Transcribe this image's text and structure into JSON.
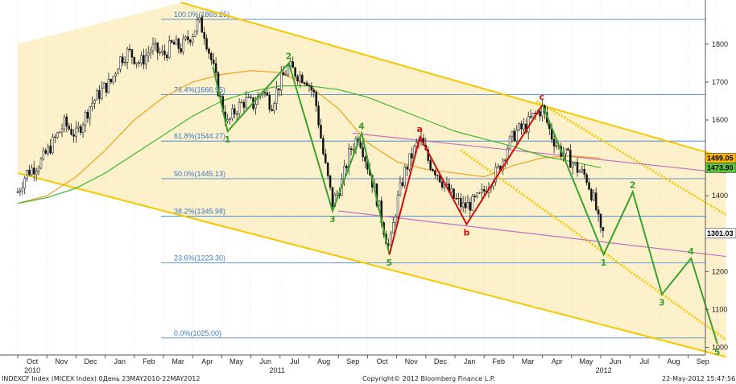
{
  "chart_data": {
    "type": "candlestick",
    "y_axis": {
      "ticks": [
        1000,
        1100,
        1200,
        1300,
        1400,
        1500,
        1600,
        1700,
        1800
      ],
      "ylim": [
        980,
        1910
      ],
      "position": "right"
    },
    "x_axis": {
      "months": [
        "Oct",
        "Nov",
        "Dec",
        "Jan",
        "Feb",
        "Mar",
        "Apr",
        "May",
        "Jun",
        "Jul",
        "Aug",
        "Sep",
        "Oct",
        "Nov",
        "Dec",
        "Jan",
        "Feb",
        "Mar",
        "Apr",
        "May",
        "Jun",
        "Jul",
        "Aug",
        "Sep"
      ],
      "years": [
        "2010",
        "2011",
        "2012"
      ]
    },
    "fib_levels": [
      {
        "label": "100.0%(1865.25)",
        "value": 1865.25
      },
      {
        "label": "76.4%(1666.95)",
        "value": 1666.95
      },
      {
        "label": "61.8%(1544.27)",
        "value": 1544.27
      },
      {
        "label": "50.0%(1445.13)",
        "value": 1445.13
      },
      {
        "label": "38.2%(1345.98)",
        "value": 1345.98
      },
      {
        "label": "23.6%(1223.30)",
        "value": 1223.3
      },
      {
        "label": "0.0%(1025.00)",
        "value": 1025.0
      }
    ],
    "waves_green_2011": [
      {
        "label": "1",
        "month": 7.2,
        "value": 1570
      },
      {
        "label": "2",
        "month": 9.3,
        "value": 1750
      },
      {
        "label": "3",
        "month": 10.8,
        "value": 1360
      },
      {
        "label": "4",
        "month": 11.8,
        "value": 1565
      },
      {
        "label": "5",
        "month": 12.75,
        "value": 1245
      }
    ],
    "waves_red_abc": [
      {
        "label": "a",
        "month": 13.8,
        "value": 1555
      },
      {
        "label": "b",
        "month": 15.4,
        "value": 1325
      },
      {
        "label": "c",
        "month": 18.0,
        "value": 1640
      }
    ],
    "waves_green_projection": [
      {
        "label": "1",
        "month": 20.1,
        "value": 1245
      },
      {
        "label": "2",
        "month": 21.1,
        "value": 1410
      },
      {
        "label": "3",
        "month": 22.1,
        "value": 1140
      },
      {
        "label": "4",
        "month": 23.1,
        "value": 1235
      },
      {
        "label": "5",
        "month": 24.0,
        "value": 1010
      }
    ],
    "last_values": [
      {
        "label": "1499.05",
        "value": 1499.05,
        "color": "#ffb800"
      },
      {
        "label": "1473.90",
        "value": 1473.9,
        "color": "#5cc83a"
      },
      {
        "label": "1301.03",
        "value": 1301.03,
        "color": "#ffffff"
      }
    ],
    "price_path": [
      [
        0,
        1410
      ],
      [
        0.3,
        1460
      ],
      [
        0.8,
        1490
      ],
      [
        1.2,
        1540
      ],
      [
        1.6,
        1590
      ],
      [
        2.0,
        1560
      ],
      [
        2.5,
        1640
      ],
      [
        2.9,
        1680
      ],
      [
        3.2,
        1700
      ],
      [
        3.5,
        1760
      ],
      [
        3.8,
        1780
      ],
      [
        4.2,
        1750
      ],
      [
        4.6,
        1790
      ],
      [
        5.0,
        1770
      ],
      [
        5.3,
        1800
      ],
      [
        5.6,
        1790
      ],
      [
        6.0,
        1830
      ],
      [
        6.2,
        1860
      ],
      [
        6.4,
        1830
      ],
      [
        6.7,
        1740
      ],
      [
        7.0,
        1640
      ],
      [
        7.2,
        1590
      ],
      [
        7.5,
        1630
      ],
      [
        7.8,
        1650
      ],
      [
        8.1,
        1640
      ],
      [
        8.4,
        1680
      ],
      [
        8.7,
        1640
      ],
      [
        9.0,
        1700
      ],
      [
        9.3,
        1740
      ],
      [
        9.6,
        1720
      ],
      [
        9.9,
        1710
      ],
      [
        10.2,
        1660
      ],
      [
        10.5,
        1500
      ],
      [
        10.8,
        1380
      ],
      [
        11.1,
        1430
      ],
      [
        11.4,
        1520
      ],
      [
        11.7,
        1560
      ],
      [
        12.0,
        1480
      ],
      [
        12.3,
        1400
      ],
      [
        12.6,
        1300
      ],
      [
        12.75,
        1260
      ],
      [
        13.0,
        1380
      ],
      [
        13.3,
        1470
      ],
      [
        13.6,
        1520
      ],
      [
        13.8,
        1550
      ],
      [
        14.1,
        1490
      ],
      [
        14.4,
        1460
      ],
      [
        14.7,
        1420
      ],
      [
        15.0,
        1390
      ],
      [
        15.3,
        1370
      ],
      [
        15.6,
        1380
      ],
      [
        15.9,
        1400
      ],
      [
        16.2,
        1440
      ],
      [
        16.5,
        1470
      ],
      [
        16.8,
        1530
      ],
      [
        17.1,
        1570
      ],
      [
        17.4,
        1580
      ],
      [
        17.7,
        1610
      ],
      [
        18.0,
        1630
      ],
      [
        18.3,
        1560
      ],
      [
        18.6,
        1520
      ],
      [
        18.9,
        1500
      ],
      [
        19.2,
        1470
      ],
      [
        19.5,
        1450
      ],
      [
        19.8,
        1380
      ],
      [
        20.0,
        1300
      ],
      [
        20.1,
        1301
      ]
    ],
    "ma_orange": [
      [
        0,
        1380
      ],
      [
        1,
        1400
      ],
      [
        2,
        1450
      ],
      [
        3,
        1520
      ],
      [
        4,
        1600
      ],
      [
        5,
        1660
      ],
      [
        6,
        1700
      ],
      [
        7,
        1720
      ],
      [
        8,
        1730
      ],
      [
        9,
        1725
      ],
      [
        10,
        1690
      ],
      [
        11,
        1630
      ],
      [
        12,
        1540
      ],
      [
        13,
        1490
      ],
      [
        14,
        1470
      ],
      [
        15,
        1460
      ],
      [
        16,
        1450
      ],
      [
        17,
        1480
      ],
      [
        18,
        1500
      ],
      [
        19,
        1505
      ],
      [
        20,
        1499
      ]
    ],
    "ma_green": [
      [
        0,
        1380
      ],
      [
        1,
        1395
      ],
      [
        2,
        1420
      ],
      [
        3,
        1460
      ],
      [
        4,
        1510
      ],
      [
        5,
        1560
      ],
      [
        6,
        1610
      ],
      [
        7,
        1650
      ],
      [
        8,
        1675
      ],
      [
        9,
        1690
      ],
      [
        10,
        1690
      ],
      [
        11,
        1680
      ],
      [
        12,
        1660
      ],
      [
        13,
        1630
      ],
      [
        14,
        1600
      ],
      [
        15,
        1570
      ],
      [
        16,
        1550
      ],
      [
        17,
        1530
      ],
      [
        18,
        1505
      ],
      [
        19,
        1490
      ],
      [
        20,
        1474
      ]
    ],
    "channel_upper": [
      [
        5.6,
        1910
      ],
      [
        24.3,
        1500
      ]
    ],
    "channel_lower": [
      [
        0,
        1460
      ],
      [
        24.3,
        975
      ]
    ],
    "channel_inner_upper": [
      [
        17.8,
        1650
      ],
      [
        24.3,
        1350
      ]
    ],
    "channel_inner_lower": [
      [
        15.2,
        1520
      ],
      [
        24.3,
        1020
      ]
    ],
    "trend_upper_pink": [
      [
        11.5,
        1565
      ],
      [
        24.3,
        1460
      ]
    ],
    "trend_lower_pink": [
      [
        11.0,
        1360
      ],
      [
        24.3,
        1240
      ]
    ]
  },
  "footer": {
    "left": "INDEXCF Index (MICEX Index) 0День 23MAY2010-22MAY2012",
    "center": "Copyright© 2012 Bloomberg Finance L.P.",
    "right": "22-May-2012 15:47:56"
  }
}
